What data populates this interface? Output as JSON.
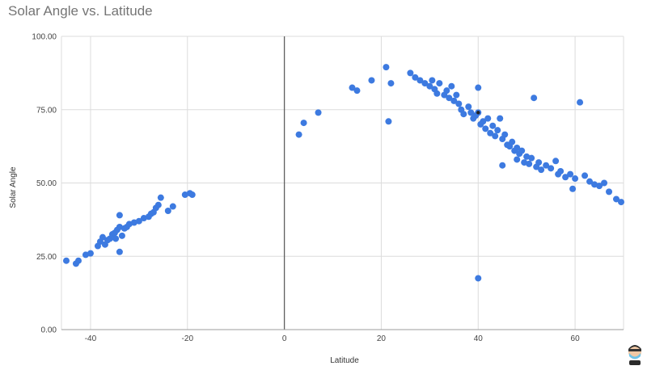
{
  "title": "Solar Angle vs. Latitude",
  "colors": {
    "point": "#3d7ae0",
    "highlight": "#202020",
    "grid": "#dcdcdc",
    "zero_axis": "#5f5f5f"
  },
  "chart_data": {
    "type": "scatter",
    "title": "Solar Angle vs. Latitude",
    "xlabel": "Latitude",
    "ylabel": "Solar Angle",
    "xlim": [
      -46,
      70
    ],
    "ylim": [
      0,
      100
    ],
    "x_ticks": [
      -40,
      -20,
      0,
      20,
      40,
      60
    ],
    "x_tick_labels": [
      "-40",
      "-20",
      "0",
      "20",
      "40",
      "60"
    ],
    "y_ticks": [
      0,
      25,
      50,
      75,
      100
    ],
    "y_tick_labels": [
      "0.00",
      "25.00",
      "50.00",
      "75.00",
      "100.00"
    ],
    "grid": true,
    "legend": "none",
    "series": [
      {
        "points": [
          [
            -45,
            23.5
          ],
          [
            -43,
            22.5
          ],
          [
            -42.5,
            23.5
          ],
          [
            -41,
            25.5
          ],
          [
            -40,
            26
          ],
          [
            -38.5,
            28.5
          ],
          [
            -38,
            30
          ],
          [
            -37.5,
            31.5
          ],
          [
            -37,
            29
          ],
          [
            -36.5,
            30.5
          ],
          [
            -36,
            31
          ],
          [
            -35.5,
            32.5
          ],
          [
            -35,
            33
          ],
          [
            -34.8,
            31
          ],
          [
            -34.5,
            34
          ],
          [
            -34,
            35
          ],
          [
            -34,
            39
          ],
          [
            -34,
            26.5
          ],
          [
            -33.5,
            32
          ],
          [
            -33,
            34.5
          ],
          [
            -32.5,
            35
          ],
          [
            -32,
            36
          ],
          [
            -31,
            36.5
          ],
          [
            -30,
            37
          ],
          [
            -29,
            38
          ],
          [
            -28,
            38.5
          ],
          [
            -27.5,
            39.5
          ],
          [
            -27,
            40
          ],
          [
            -26.5,
            41.5
          ],
          [
            -26,
            42.5
          ],
          [
            -25.5,
            45
          ],
          [
            -24,
            40.5
          ],
          [
            -23,
            42
          ],
          [
            -20.5,
            46
          ],
          [
            -19.5,
            46.5
          ],
          [
            -19,
            46
          ],
          [
            3,
            66.5
          ],
          [
            4,
            70.5
          ],
          [
            7,
            74
          ],
          [
            14,
            82.5
          ],
          [
            15,
            81.5
          ],
          [
            18,
            85
          ],
          [
            21,
            89.5
          ],
          [
            21.5,
            71
          ],
          [
            22,
            84
          ],
          [
            26,
            87.5
          ],
          [
            27,
            86
          ],
          [
            28,
            85
          ],
          [
            29,
            84
          ],
          [
            30,
            83
          ],
          [
            30.5,
            85
          ],
          [
            31,
            82
          ],
          [
            31.5,
            80.5
          ],
          [
            32,
            84
          ],
          [
            33,
            80
          ],
          [
            33.5,
            81.5
          ],
          [
            34,
            79
          ],
          [
            34.5,
            83
          ],
          [
            35,
            78
          ],
          [
            35.5,
            80
          ],
          [
            36,
            77
          ],
          [
            36.5,
            75
          ],
          [
            37,
            73.5
          ],
          [
            38,
            76
          ],
          [
            38.5,
            74
          ],
          [
            39,
            72
          ],
          [
            39.5,
            73
          ],
          [
            40,
            74
          ],
          [
            40,
            82.5
          ],
          [
            40,
            17.5
          ],
          [
            40.5,
            70
          ],
          [
            41,
            71
          ],
          [
            41.5,
            68.5
          ],
          [
            42,
            72
          ],
          [
            42.5,
            67
          ],
          [
            43,
            69.5
          ],
          [
            43.5,
            66
          ],
          [
            44,
            68
          ],
          [
            44.5,
            72
          ],
          [
            45,
            65
          ],
          [
            45,
            56
          ],
          [
            45.5,
            66.5
          ],
          [
            46,
            63
          ],
          [
            46.5,
            62.5
          ],
          [
            47,
            64
          ],
          [
            47.5,
            61
          ],
          [
            48,
            62
          ],
          [
            48,
            58
          ],
          [
            48.5,
            60
          ],
          [
            49,
            61
          ],
          [
            49.5,
            57
          ],
          [
            50,
            59
          ],
          [
            50.5,
            56.5
          ],
          [
            51,
            58.5
          ],
          [
            51.5,
            79
          ],
          [
            52,
            55.5
          ],
          [
            52.5,
            57
          ],
          [
            53,
            54.5
          ],
          [
            54,
            56
          ],
          [
            55,
            55
          ],
          [
            56,
            57.5
          ],
          [
            56.5,
            53
          ],
          [
            57,
            54
          ],
          [
            58,
            52
          ],
          [
            59,
            53
          ],
          [
            59.5,
            48
          ],
          [
            60,
            51.5
          ],
          [
            61,
            77.5
          ],
          [
            62,
            52.5
          ],
          [
            63,
            50.5
          ],
          [
            64,
            49.5
          ],
          [
            65,
            49
          ],
          [
            66,
            50
          ],
          [
            67,
            47
          ],
          [
            68.5,
            44.5
          ],
          [
            69.5,
            43.5
          ]
        ],
        "highlight_point": [
          40,
          74
        ]
      }
    ]
  }
}
